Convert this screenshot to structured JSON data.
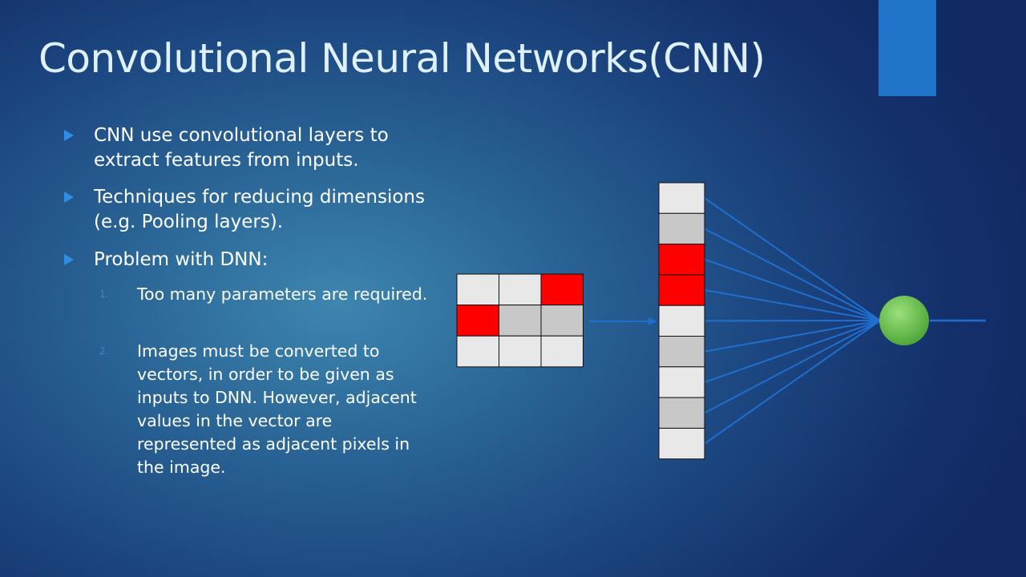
{
  "slide": {
    "title": "Convolutional Neural Networks(CNN)",
    "bullets": [
      {
        "text": "CNN use convolutional layers to extract features from inputs."
      },
      {
        "text": "Techniques for reducing dimensions (e.g. Pooling layers)."
      },
      {
        "text": "Problem with DNN:"
      }
    ],
    "subitems": [
      {
        "num": "1.",
        "text": "Too many parameters are required."
      },
      {
        "num": "2.",
        "text": "Images must be converted to vectors, in order to be given as inputs to DNN. However, adjacent values in the vector are represented as adjacent pixels in the image."
      }
    ]
  },
  "diagram": {
    "colors": {
      "light": "#e8e8e8",
      "gray": "#c8c8c8",
      "red": "#ff0000",
      "line": "#1f6fd0",
      "node": "#6cc24a"
    },
    "grid": [
      [
        "light",
        "light",
        "red"
      ],
      [
        "red",
        "gray",
        "gray"
      ],
      [
        "light",
        "light",
        "light"
      ]
    ],
    "vector": [
      "light",
      "gray",
      "red",
      "red",
      "light",
      "gray",
      "light",
      "gray",
      "light"
    ]
  }
}
